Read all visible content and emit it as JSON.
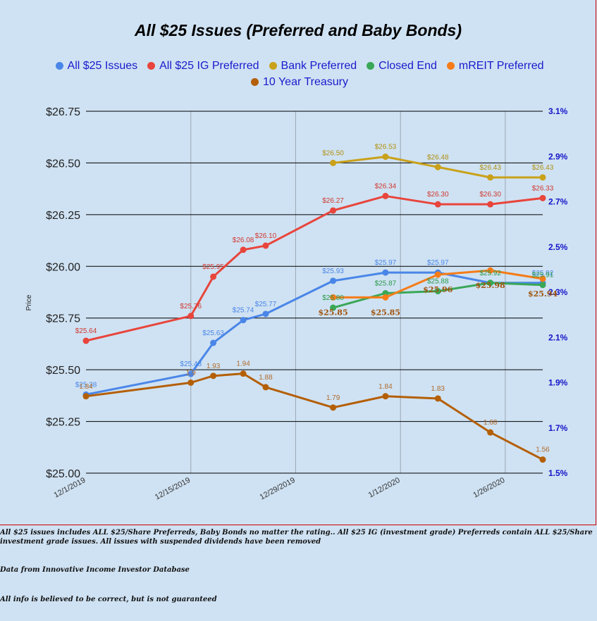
{
  "chart_data": {
    "type": "line",
    "title": "All $25 Issues (Preferred and Baby Bonds)",
    "ylabel": "Price",
    "y_left": {
      "range": [
        25.0,
        26.75
      ],
      "ticks": [
        {
          "v": 25.0,
          "label": "$25.00"
        },
        {
          "v": 25.25,
          "label": "$25.25"
        },
        {
          "v": 25.5,
          "label": "$25.50"
        },
        {
          "v": 25.75,
          "label": "$25.75"
        },
        {
          "v": 26.0,
          "label": "$26.00"
        },
        {
          "v": 26.25,
          "label": "$26.25"
        },
        {
          "v": 26.5,
          "label": "$26.50"
        },
        {
          "v": 26.75,
          "label": "$26.75"
        }
      ]
    },
    "y_right": {
      "range": [
        1.5,
        3.1
      ],
      "ticks": [
        {
          "v": 1.5,
          "label": "1.5%"
        },
        {
          "v": 1.7,
          "label": "1.7%"
        },
        {
          "v": 1.9,
          "label": "1.9%"
        },
        {
          "v": 2.1,
          "label": "2.1%"
        },
        {
          "v": 2.3,
          "label": "2.3%"
        },
        {
          "v": 2.5,
          "label": "2.5%"
        },
        {
          "v": 2.7,
          "label": "2.7%"
        },
        {
          "v": 2.9,
          "label": "2.9%"
        },
        {
          "v": 3.1,
          "label": "3.1%"
        }
      ]
    },
    "x_axis": {
      "range": [
        "2019-12-01",
        "2020-01-31"
      ],
      "ticks": [
        {
          "date": "2019-12-01",
          "label": "12/1/2019"
        },
        {
          "date": "2019-12-15",
          "label": "12/15/2019"
        },
        {
          "date": "2019-12-29",
          "label": "12/29/2019"
        },
        {
          "date": "2020-01-12",
          "label": "1/12/2020"
        },
        {
          "date": "2020-01-26",
          "label": "1/26/2020"
        }
      ]
    },
    "grid": true,
    "legend_position": "top",
    "series": [
      {
        "name": "All $25 Issues",
        "color": "#4a86e8",
        "label_color": "#4a86e8",
        "axis": "left",
        "points": [
          {
            "x": "2019-12-01",
            "y": 25.38,
            "label": "$25.38"
          },
          {
            "x": "2019-12-15",
            "y": 25.48,
            "label": "$25.48"
          },
          {
            "x": "2019-12-18",
            "y": 25.63,
            "label": "$25.63"
          },
          {
            "x": "2019-12-22",
            "y": 25.74,
            "label": "$25.74"
          },
          {
            "x": "2019-12-25",
            "y": 25.77,
            "label": "$25.77"
          },
          {
            "x": "2020-01-03",
            "y": 25.93,
            "label": "$25.93"
          },
          {
            "x": "2020-01-10",
            "y": 25.97,
            "label": "$25.97"
          },
          {
            "x": "2020-01-17",
            "y": 25.97,
            "label": "$25.97"
          },
          {
            "x": "2020-01-24",
            "y": 25.92,
            "label": ""
          },
          {
            "x": "2020-01-31",
            "y": 25.92,
            "label": "$25.92"
          }
        ]
      },
      {
        "name": "All $25 IG Preferred",
        "color": "#e8453c",
        "label_color": "#d0392f",
        "axis": "left",
        "points": [
          {
            "x": "2019-12-01",
            "y": 25.64,
            "label": "$25.64"
          },
          {
            "x": "2019-12-15",
            "y": 25.76,
            "label": "$25.76"
          },
          {
            "x": "2019-12-18",
            "y": 25.95,
            "label": "$25.95"
          },
          {
            "x": "2019-12-22",
            "y": 26.08,
            "label": "$26.08"
          },
          {
            "x": "2019-12-25",
            "y": 26.1,
            "label": "$26.10"
          },
          {
            "x": "2020-01-03",
            "y": 26.27,
            "label": "$26.27"
          },
          {
            "x": "2020-01-10",
            "y": 26.34,
            "label": "$26.34"
          },
          {
            "x": "2020-01-17",
            "y": 26.3,
            "label": "$26.30"
          },
          {
            "x": "2020-01-24",
            "y": 26.3,
            "label": "$26.30"
          },
          {
            "x": "2020-01-31",
            "y": 26.33,
            "label": "$26.33"
          }
        ]
      },
      {
        "name": "Bank Preferred",
        "color": "#c9a11a",
        "label_color": "#b0900e",
        "axis": "left",
        "points": [
          {
            "x": "2020-01-03",
            "y": 26.5,
            "label": "$26.50"
          },
          {
            "x": "2020-01-10",
            "y": 26.53,
            "label": "$26.53"
          },
          {
            "x": "2020-01-17",
            "y": 26.48,
            "label": "$26.48"
          },
          {
            "x": "2020-01-24",
            "y": 26.43,
            "label": "$26.43"
          },
          {
            "x": "2020-01-31",
            "y": 26.43,
            "label": "$26.43"
          }
        ]
      },
      {
        "name": "Closed End",
        "color": "#3aa757",
        "label_color": "#2a9a4a",
        "axis": "left",
        "points": [
          {
            "x": "2020-01-03",
            "y": 25.8,
            "label": "$25.80"
          },
          {
            "x": "2020-01-10",
            "y": 25.87,
            "label": "$25.87"
          },
          {
            "x": "2020-01-17",
            "y": 25.88,
            "label": "$25.88"
          },
          {
            "x": "2020-01-24",
            "y": 25.92,
            "label": "$25.92"
          },
          {
            "x": "2020-01-31",
            "y": 25.91,
            "label": "$25.91"
          }
        ]
      },
      {
        "name": "mREIT Preferred",
        "color": "#f57c18",
        "label_color": "#a0520a",
        "axis": "left",
        "points": [
          {
            "x": "2020-01-03",
            "y": 25.85,
            "label": "$25.85"
          },
          {
            "x": "2020-01-10",
            "y": 25.85,
            "label": "$25.85"
          },
          {
            "x": "2020-01-17",
            "y": 25.96,
            "label": "$25.96"
          },
          {
            "x": "2020-01-24",
            "y": 25.98,
            "label": "$25.98"
          },
          {
            "x": "2020-01-31",
            "y": 25.94,
            "label": "$25.94"
          }
        ]
      },
      {
        "name": "10 Year Treasury",
        "color": "#b45f06",
        "label_color": "#b06a2a",
        "axis": "right",
        "points": [
          {
            "x": "2019-12-01",
            "y": 1.84,
            "label": "1.84"
          },
          {
            "x": "2019-12-15",
            "y": 1.9,
            "label": "1.9"
          },
          {
            "x": "2019-12-18",
            "y": 1.93,
            "label": "1.93"
          },
          {
            "x": "2019-12-22",
            "y": 1.94,
            "label": "1.94"
          },
          {
            "x": "2019-12-25",
            "y": 1.88,
            "label": "1.88"
          },
          {
            "x": "2020-01-03",
            "y": 1.79,
            "label": "1.79"
          },
          {
            "x": "2020-01-10",
            "y": 1.84,
            "label": "1.84"
          },
          {
            "x": "2020-01-17",
            "y": 1.83,
            "label": "1.83"
          },
          {
            "x": "2020-01-24",
            "y": 1.68,
            "label": "1.68"
          },
          {
            "x": "2020-01-31",
            "y": 1.56,
            "label": "1.56"
          }
        ]
      }
    ]
  },
  "notes": {
    "line1": "All $25 issues includes ALL $25/Share Preferreds, Baby Bonds no matter the rating..  All $25 IG (investment grade) Preferreds contain ALL $25/Share investment grade issues.  All issues with suspended dividends have been removed",
    "line2": "Data from Innovative Income Investor Database",
    "line3": "All info is believed to be correct, but is not guaranteed"
  }
}
